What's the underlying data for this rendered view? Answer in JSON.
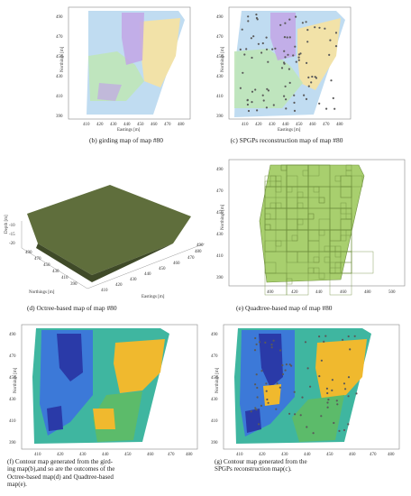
{
  "panels": {
    "b": {
      "caption": "(b) girding map of map #80",
      "ylabel": "Northings [m]",
      "xlabel": "Eastings [m]",
      "yticks": [
        "490",
        "470",
        "450",
        "430",
        "410",
        "390"
      ],
      "xticks": [
        "410",
        "420",
        "430",
        "440",
        "450",
        "460",
        "470",
        "480"
      ]
    },
    "c": {
      "caption": "(c) SPGPs reconstruction map of map #80",
      "ylabel": "Northings [m]",
      "xlabel": "Eastings [m]",
      "yticks": [
        "490",
        "470",
        "450",
        "430",
        "410",
        "390"
      ],
      "xticks": [
        "410",
        "420",
        "430",
        "440",
        "450",
        "460",
        "470",
        "480"
      ]
    },
    "d": {
      "caption": "(d) Octree-based map of map #80",
      "zlabel": "Depth [m]",
      "ylabel": "Northings [m]",
      "xlabel": "Eastings [m]",
      "zticks": [
        "-10",
        "-15",
        "-20"
      ],
      "yticks": [
        "490",
        "470",
        "450",
        "430",
        "410",
        "390"
      ],
      "xticks": [
        "410",
        "420",
        "430",
        "440",
        "450",
        "460",
        "470",
        "480",
        "490"
      ]
    },
    "e": {
      "caption": "(e) Quadtree-based map of map #80",
      "ylabel": "Northings [m]",
      "xlabel": "",
      "yticks": [
        "490",
        "470",
        "450",
        "430",
        "410",
        "390"
      ],
      "xticks": [
        "400",
        "420",
        "440",
        "460",
        "480",
        "500"
      ]
    },
    "f": {
      "caption_lines": [
        "(f) Contour map generated from the gird-",
        "ing map(b),and so are the outcomes of the",
        "Octree-based map(d) and Quadtree-based",
        "map(e)."
      ],
      "ylabel": "Northings [m]",
      "xlabel": "Eastings [m]",
      "yticks": [
        "490",
        "470",
        "450",
        "430",
        "410",
        "390"
      ],
      "xticks": [
        "410",
        "420",
        "430",
        "440",
        "450",
        "460",
        "470",
        "480"
      ]
    },
    "g": {
      "caption_lines": [
        "(g) Contour map generated from the",
        "SPGPs reconstruction map(c)."
      ],
      "ylabel": "Northings [m]",
      "xlabel": "Eastings [m]",
      "yticks": [
        "490",
        "470",
        "450",
        "430",
        "410",
        "390"
      ],
      "xticks": [
        "410",
        "420",
        "430",
        "440",
        "450",
        "460",
        "470",
        "480"
      ]
    }
  },
  "colors": {
    "grid_blue": "#b9d8f0",
    "grid_purple": "#c2a6e6",
    "grid_green": "#bfe6b8",
    "grid_yellow": "#f2e2a8",
    "octree_green": "#5f6e3c",
    "quad_green": "#a8cf6e",
    "contour_navy": "#2a3aa8",
    "contour_blue": "#3c79d8",
    "contour_teal": "#3fb6a0",
    "contour_green": "#5cbb6a",
    "contour_yellow": "#f0b92e",
    "dot_gray": "#5a5a5a"
  }
}
